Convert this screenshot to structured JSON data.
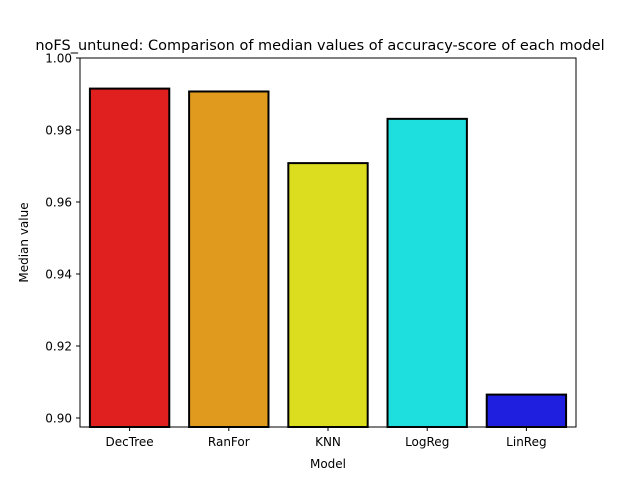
{
  "chart_data": {
    "type": "bar",
    "title": "noFS_untuned: Comparison of median values of accuracy-score of each model",
    "xlabel": "Model",
    "ylabel": "Median value",
    "categories": [
      "DecTree",
      "RanFor",
      "KNN",
      "LogReg",
      "LinReg"
    ],
    "values": [
      0.9915,
      0.9907,
      0.9708,
      0.9831,
      0.9065
    ],
    "colors": [
      "#e01f1f",
      "#e09b1f",
      "#dddd1f",
      "#1fdede",
      "#1f1fdf"
    ],
    "ylim": [
      0.8975,
      1.0
    ],
    "yticks": [
      0.9,
      0.92,
      0.94,
      0.96,
      0.98,
      1.0
    ],
    "ytick_labels": [
      "0.90",
      "0.92",
      "0.94",
      "0.96",
      "0.98",
      "1.00"
    ],
    "grid": false,
    "legend": "none"
  }
}
